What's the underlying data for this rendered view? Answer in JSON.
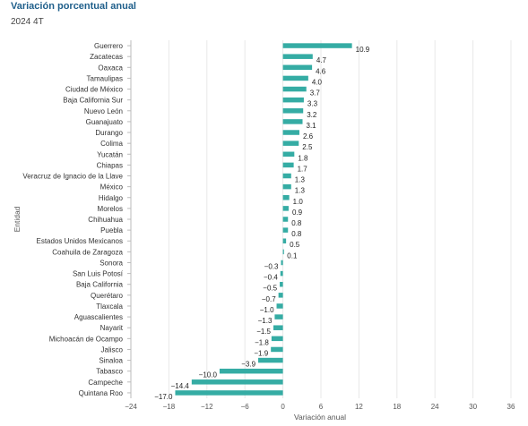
{
  "header": {
    "title": "Variación porcentual anual",
    "subtitle": "2024 4T"
  },
  "colors": {
    "bar": "#35aca4",
    "grid": "#e8e8e8",
    "axis": "#bbbbbb",
    "title": "#1f5f8b"
  },
  "chart_data": {
    "type": "bar",
    "orientation": "horizontal",
    "xlabel": "Variación anual",
    "ylabel": "Entidad",
    "xlim": [
      -24,
      36
    ],
    "xticks": [
      "−24",
      "−18",
      "−12",
      "−6",
      "0",
      "6",
      "12",
      "18",
      "24",
      "30",
      "36"
    ],
    "grid": true,
    "categories": [
      "Guerrero",
      "Zacatecas",
      "Oaxaca",
      "Tamaulipas",
      "Ciudad de México",
      "Baja California Sur",
      "Nuevo León",
      "Guanajuato",
      "Durango",
      "Colima",
      "Yucatán",
      "Chiapas",
      "Veracruz de Ignacio de la Llave",
      "México",
      "Hidalgo",
      "Morelos",
      "Chihuahua",
      "Puebla",
      "Estados Unidos Mexicanos",
      "Coahuila de Zaragoza",
      "Sonora",
      "San Luis Potosí",
      "Baja California",
      "Querétaro",
      "Tlaxcala",
      "Aguascalientes",
      "Nayarit",
      "Michoacán de Ocampo",
      "Jalisco",
      "Sinaloa",
      "Tabasco",
      "Campeche",
      "Quintana Roo"
    ],
    "values": [
      10.9,
      4.7,
      4.6,
      4.0,
      3.7,
      3.3,
      3.2,
      3.1,
      2.6,
      2.5,
      1.8,
      1.7,
      1.3,
      1.3,
      1.0,
      0.9,
      0.8,
      0.8,
      0.5,
      0.1,
      -0.3,
      -0.4,
      -0.5,
      -0.7,
      -1.0,
      -1.3,
      -1.5,
      -1.8,
      -1.9,
      -3.9,
      -10.0,
      -14.4,
      -17.0
    ],
    "labels": [
      "10.9",
      "4.7",
      "4.6",
      "4.0",
      "3.7",
      "3.3",
      "3.2",
      "3.1",
      "2.6",
      "2.5",
      "1.8",
      "1.7",
      "1.3",
      "1.3",
      "1.0",
      "0.9",
      "0.8",
      "0.8",
      "0.5",
      "0.1",
      "−0.3",
      "−0.4",
      "−0.5",
      "−0.7",
      "−1.0",
      "−1.3",
      "−1.5",
      "−1.8",
      "−1.9",
      "−3.9",
      "−10.0",
      "−14.4",
      "−17.0"
    ]
  }
}
